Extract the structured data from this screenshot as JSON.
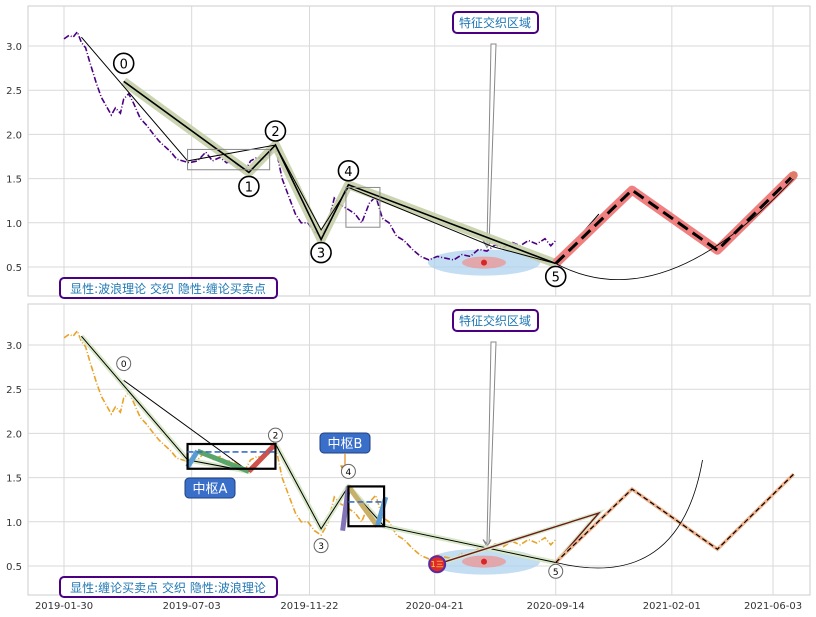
{
  "chart_data": [
    {
      "type": "line",
      "panel": "top",
      "ylim": [
        0.2,
        3.45
      ],
      "yticks": [
        0.5,
        1.0,
        1.5,
        2.0,
        2.5,
        3.0
      ],
      "ytick_labels": [
        "0.5",
        "1.0",
        "1.5",
        "2.0",
        "2.5",
        "3.0"
      ],
      "grid": true,
      "price_color": "#4b0082",
      "price": [
        [
          "2019-01-30",
          3.08
        ],
        [
          "2019-02-05",
          3.12
        ],
        [
          "2019-02-10",
          3.1
        ],
        [
          "2019-02-15",
          3.16
        ],
        [
          "2019-02-20",
          3.04
        ],
        [
          "2019-02-25",
          2.98
        ],
        [
          "2019-03-02",
          2.82
        ],
        [
          "2019-03-06",
          2.7
        ],
        [
          "2019-03-10",
          2.58
        ],
        [
          "2019-03-16",
          2.42
        ],
        [
          "2019-03-22",
          2.32
        ],
        [
          "2019-03-28",
          2.22
        ],
        [
          "2019-04-02",
          2.3
        ],
        [
          "2019-04-08",
          2.24
        ],
        [
          "2019-04-12",
          2.4
        ],
        [
          "2019-04-18",
          2.46
        ],
        [
          "2019-04-24",
          2.35
        ],
        [
          "2019-05-02",
          2.18
        ],
        [
          "2019-05-10",
          2.1
        ],
        [
          "2019-05-18",
          2.0
        ],
        [
          "2019-05-25",
          1.92
        ],
        [
          "2019-06-01",
          1.86
        ],
        [
          "2019-06-08",
          1.8
        ],
        [
          "2019-06-15",
          1.72
        ],
        [
          "2019-06-22",
          1.7
        ],
        [
          "2019-06-30",
          1.68
        ],
        [
          "2019-07-10",
          1.7
        ],
        [
          "2019-07-20",
          1.8
        ],
        [
          "2019-07-28",
          1.7
        ],
        [
          "2019-08-06",
          1.74
        ],
        [
          "2019-08-14",
          1.68
        ],
        [
          "2019-08-22",
          1.7
        ],
        [
          "2019-08-30",
          1.62
        ],
        [
          "2019-09-06",
          1.6
        ],
        [
          "2019-09-12",
          1.7
        ],
        [
          "2019-09-20",
          1.74
        ],
        [
          "2019-09-28",
          1.72
        ],
        [
          "2019-10-05",
          1.78
        ],
        [
          "2019-10-12",
          1.86
        ],
        [
          "2019-10-20",
          1.5
        ],
        [
          "2019-10-28",
          1.3
        ],
        [
          "2019-11-05",
          1.1
        ],
        [
          "2019-11-12",
          1.0
        ],
        [
          "2019-11-20",
          1.0
        ],
        [
          "2019-11-28",
          0.9
        ],
        [
          "2019-12-06",
          0.85
        ],
        [
          "2019-12-14",
          0.98
        ],
        [
          "2019-12-22",
          1.28
        ],
        [
          "2019-12-30",
          1.2
        ],
        [
          "2020-01-08",
          1.15
        ],
        [
          "2020-01-16",
          1.1
        ],
        [
          "2020-01-24",
          1.0
        ],
        [
          "2020-02-02",
          1.22
        ],
        [
          "2020-02-10",
          1.3
        ],
        [
          "2020-02-18",
          1.05
        ],
        [
          "2020-02-26",
          1.0
        ],
        [
          "2020-03-06",
          0.85
        ],
        [
          "2020-03-15",
          0.8
        ],
        [
          "2020-03-25",
          0.7
        ],
        [
          "2020-04-04",
          0.62
        ],
        [
          "2020-04-14",
          0.58
        ],
        [
          "2020-04-24",
          0.62
        ],
        [
          "2020-05-04",
          0.6
        ],
        [
          "2020-05-14",
          0.58
        ],
        [
          "2020-05-24",
          0.64
        ],
        [
          "2020-06-03",
          0.62
        ],
        [
          "2020-06-13",
          0.7
        ],
        [
          "2020-06-23",
          0.68
        ],
        [
          "2020-07-03",
          0.75
        ],
        [
          "2020-07-13",
          0.72
        ],
        [
          "2020-07-23",
          0.78
        ],
        [
          "2020-08-02",
          0.74
        ],
        [
          "2020-08-12",
          0.8
        ],
        [
          "2020-08-22",
          0.76
        ],
        [
          "2020-09-01",
          0.82
        ],
        [
          "2020-09-08",
          0.74
        ],
        [
          "2020-09-14",
          0.8
        ]
      ],
      "wave_points": [
        [
          "2019-04-12",
          2.6
        ],
        [
          "2019-09-10",
          1.57
        ],
        [
          "2019-10-12",
          1.88
        ],
        [
          "2019-12-06",
          0.81
        ],
        [
          "2020-01-08",
          1.43
        ],
        [
          "2020-09-14",
          0.54
        ]
      ],
      "wave_labels": [
        "0",
        "1",
        "2",
        "3",
        "4",
        "5"
      ],
      "projection": [
        [
          "2020-09-14",
          0.54
        ],
        [
          "2020-12-15",
          1.37
        ],
        [
          "2021-03-28",
          0.69
        ],
        [
          "2021-06-28",
          1.54
        ]
      ],
      "annotation": "特征交织区域",
      "legend_text": "显性:波浪理论 交织 隐性:缠论买卖点"
    },
    {
      "type": "line",
      "panel": "bottom",
      "ylim": [
        0.2,
        3.45
      ],
      "yticks": [
        0.5,
        1.0,
        1.5,
        2.0,
        2.5,
        3.0
      ],
      "ytick_labels": [
        "0.5",
        "1.0",
        "1.5",
        "2.0",
        "2.5",
        "3.0"
      ],
      "xticks": [
        "2019-01-30",
        "2019-07-03",
        "2019-11-22",
        "2020-04-21",
        "2020-09-14",
        "2021-02-01",
        "2021-06-03"
      ],
      "xtick_labels": [
        "2019-01-30",
        "2019-07-03",
        "2019-11-22",
        "2020-04-21",
        "2020-09-14",
        "2021-02-01",
        "2021-06-03"
      ],
      "grid": true,
      "price_color": "#e8a32a",
      "stroke_points": [
        [
          "2019-02-20",
          3.1
        ],
        [
          "2019-06-28",
          1.7
        ],
        [
          "2019-09-10",
          1.57
        ],
        [
          "2019-10-12",
          1.88
        ],
        [
          "2019-12-06",
          0.92
        ],
        [
          "2020-01-08",
          1.4
        ],
        [
          "2020-02-20",
          0.95
        ],
        [
          "2020-09-14",
          0.54
        ]
      ],
      "wave_labels": [
        "0",
        "2",
        "3",
        "4",
        "5"
      ],
      "zhongshu": [
        {
          "label": "中枢A",
          "x0": "2019-06-28",
          "x1": "2019-10-12",
          "y0": 1.6,
          "y1": 1.88
        },
        {
          "label": "中枢B",
          "x0": "2020-01-08",
          "x1": "2020-02-20",
          "y0": 0.95,
          "y1": 1.4
        }
      ],
      "buy_point": [
        "2020-04-24",
        0.52
      ],
      "buy_label": "1三",
      "annotation": "特征交织区域",
      "legend_text": "显性:缠论买卖点 交织 隐性:波浪理论"
    }
  ]
}
